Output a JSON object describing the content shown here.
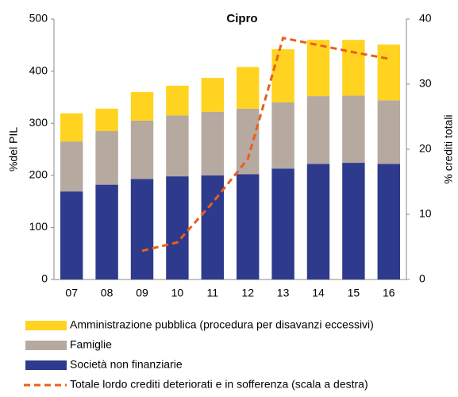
{
  "chart_data": {
    "type": "bar",
    "stacked": true,
    "title": "Cipro",
    "y_label": "%del PIL",
    "y2_label": "% crediti totali",
    "categories": [
      "07",
      "08",
      "09",
      "10",
      "11",
      "12",
      "13",
      "14",
      "15",
      "16"
    ],
    "series": [
      {
        "name": "Società non finanziarie",
        "color": "#2e3a8c",
        "type": "bar",
        "values": [
          169,
          182,
          193,
          198,
          200,
          202,
          213,
          222,
          224,
          222
        ]
      },
      {
        "name": "Famiglie",
        "color": "#b5a9a0",
        "type": "bar",
        "values": [
          96,
          103,
          112,
          117,
          122,
          126,
          127,
          130,
          129,
          122
        ]
      },
      {
        "name": "Amministrazione pubblica (procedura per disavanzi eccessivi)",
        "color": "#ffd320",
        "type": "bar",
        "values": [
          54,
          43,
          55,
          57,
          65,
          80,
          102,
          108,
          107,
          107
        ]
      },
      {
        "name": "Totale lordo crediti deteriorati e in sofferenza (scala a destra)",
        "color": "#e8601c",
        "type": "line",
        "axis": "y2",
        "dashed": true,
        "values": [
          null,
          null,
          4.4,
          5.7,
          11.8,
          18.5,
          37.1,
          36.0,
          34.9,
          33.9
        ]
      }
    ],
    "legend_order": [
      2,
      1,
      0,
      3
    ],
    "ylim": [
      0,
      500
    ],
    "yticks": [
      0,
      100,
      200,
      300,
      400,
      500
    ],
    "y2lim": [
      0,
      40
    ],
    "y2ticks": [
      0,
      10,
      20,
      30,
      40
    ]
  }
}
